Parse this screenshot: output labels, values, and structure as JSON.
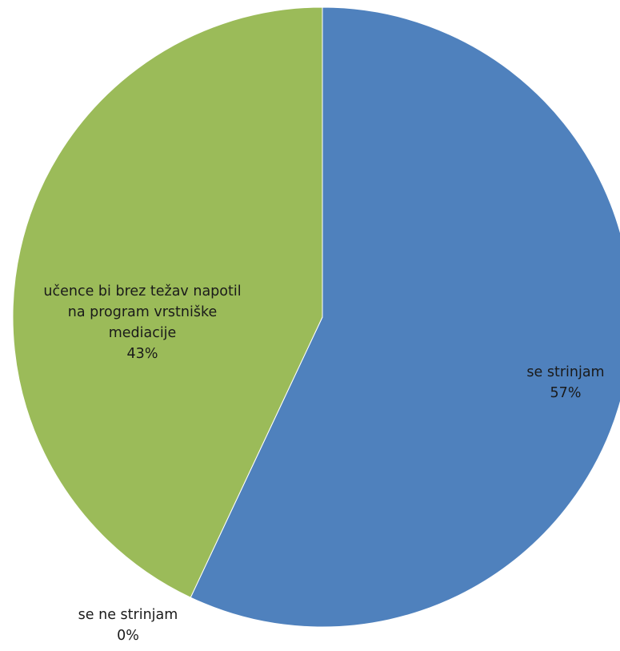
{
  "chart_data": {
    "type": "pie",
    "slices": [
      {
        "category": "se strinjam",
        "value": 57,
        "value_label": "57%",
        "color": "#4F81BD"
      },
      {
        "category": "se ne strinjam",
        "value": 0,
        "value_label": "0%",
        "color": "#C0504D"
      },
      {
        "category": "učence bi brez težav napotil na program vrstniške mediacije",
        "value": 43,
        "value_label": "43%",
        "color": "#9BBB59"
      }
    ],
    "legend": "none",
    "label_contents": [
      "category",
      "percentage"
    ]
  }
}
